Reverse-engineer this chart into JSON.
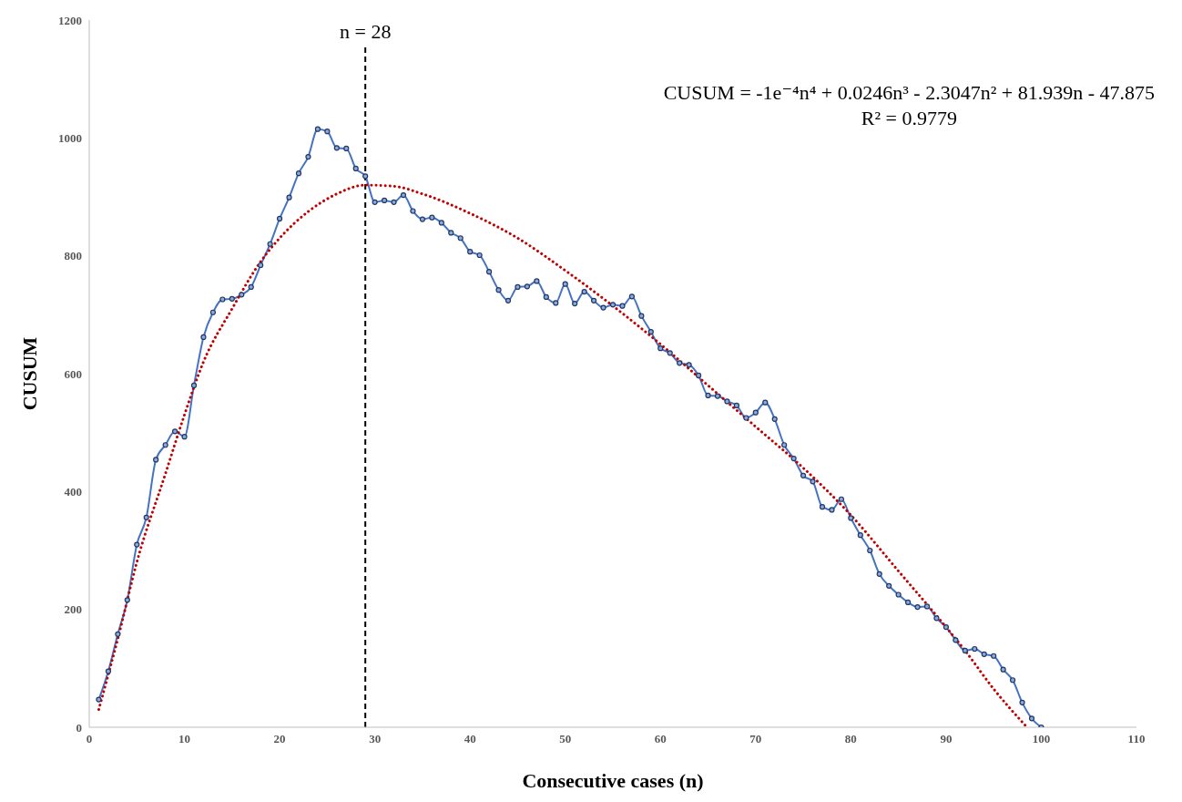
{
  "chart_data": {
    "type": "line",
    "xlabel": "Consecutive cases (n)",
    "ylabel": "CUSUM",
    "xlim": [
      0,
      110
    ],
    "xticks": [
      0,
      10,
      20,
      30,
      40,
      50,
      60,
      70,
      80,
      90,
      100,
      110
    ],
    "ylim": [
      0,
      1200
    ],
    "yticks": [
      0,
      200,
      400,
      600,
      800,
      1000,
      1200
    ],
    "x": [
      1,
      2,
      3,
      4,
      5,
      6,
      7,
      8,
      9,
      10,
      11,
      12,
      13,
      14,
      15,
      16,
      17,
      18,
      19,
      20,
      21,
      22,
      23,
      24,
      25,
      26,
      27,
      28,
      29,
      30,
      31,
      32,
      33,
      34,
      35,
      36,
      37,
      38,
      39,
      40,
      41,
      42,
      43,
      44,
      45,
      46,
      47,
      48,
      49,
      50,
      51,
      52,
      53,
      54,
      55,
      56,
      57,
      58,
      59,
      60,
      61,
      62,
      63,
      64,
      65,
      66,
      67,
      68,
      69,
      70,
      71,
      72,
      73,
      74,
      75,
      76,
      77,
      78,
      79,
      80,
      81,
      82,
      83,
      84,
      85,
      86,
      87,
      88,
      89,
      90,
      91,
      92,
      93,
      94,
      95,
      96,
      97,
      98,
      99,
      100
    ],
    "series": [
      {
        "color": "#4472c4",
        "marker": "circle",
        "line_style": "solid",
        "values": [
          47,
          95,
          158,
          216,
          310,
          356,
          454,
          479,
          502,
          493,
          580,
          662,
          704,
          726,
          727,
          734,
          747,
          784,
          820,
          863,
          899,
          940,
          968,
          1015,
          1011,
          983,
          982,
          948,
          935,
          891,
          894,
          891,
          903,
          876,
          862,
          865,
          856,
          839,
          830,
          807,
          801,
          773,
          742,
          724,
          747,
          748,
          757,
          730,
          720,
          752,
          719,
          739,
          724,
          712,
          717,
          715,
          731,
          698,
          671,
          643,
          635,
          618,
          615,
          597,
          563,
          562,
          553,
          546,
          525,
          534,
          551,
          523,
          479,
          456,
          427,
          417,
          374,
          369,
          387,
          355,
          326,
          300,
          260,
          240,
          225,
          212,
          204,
          205,
          185,
          170,
          148,
          130,
          133,
          124,
          121,
          98,
          80,
          42,
          15,
          0
        ]
      },
      {
        "color": "#c00000",
        "marker": "none",
        "line_style": "dotted",
        "x": [
          1,
          3,
          5,
          8,
          10,
          12,
          15,
          18,
          20,
          23,
          26,
          29,
          32,
          35,
          40,
          45,
          50,
          55,
          60,
          65,
          70,
          75,
          80,
          85,
          90,
          92,
          95,
          98.5
        ],
        "values": [
          30,
          150,
          280,
          430,
          530,
          620,
          710,
          790,
          830,
          875,
          905,
          920,
          918,
          905,
          872,
          830,
          775,
          715,
          650,
          580,
          510,
          440,
          360,
          265,
          170,
          130,
          65,
          0
        ]
      }
    ],
    "ref_lines": [
      {
        "axis": "x",
        "value": 29,
        "color": "#000000",
        "line_style": "dashed"
      }
    ],
    "annotations": [
      "n = 28",
      "CUSUM = -1e⁻⁴n⁴ + 0.0246n³ - 2.3047n² + 81.939n - 47.875",
      "R² = 0.9779"
    ]
  }
}
